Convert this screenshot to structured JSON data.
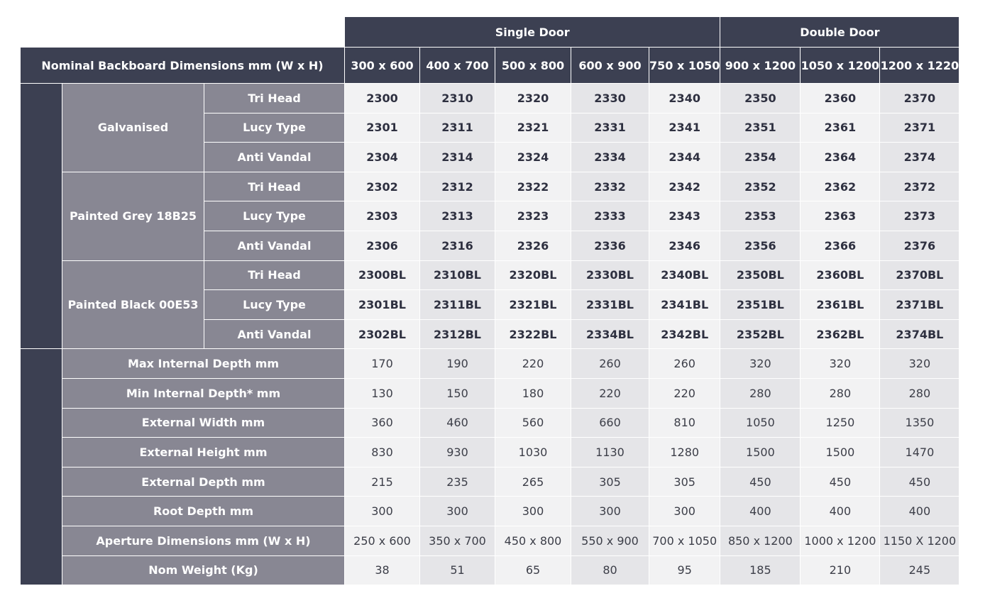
{
  "header": {
    "single_door": "Single Door",
    "double_door": "Double Door",
    "dimensions_label": "Nominal Backboard Dimensions mm (W x H)",
    "sizes": [
      "300 x 600",
      "400 x 700",
      "500 x 800",
      "600 x 900",
      "750 x 1050",
      "900 x 1200",
      "1050 x 1200",
      "1200 x 1220"
    ]
  },
  "finishes": [
    {
      "name": "Galvanised",
      "rows": [
        {
          "type": "Tri Head",
          "codes": [
            "2300",
            "2310",
            "2320",
            "2330",
            "2340",
            "2350",
            "2360",
            "2370"
          ]
        },
        {
          "type": "Lucy Type",
          "codes": [
            "2301",
            "2311",
            "2321",
            "2331",
            "2341",
            "2351",
            "2361",
            "2371"
          ]
        },
        {
          "type": "Anti Vandal",
          "codes": [
            "2304",
            "2314",
            "2324",
            "2334",
            "2344",
            "2354",
            "2364",
            "2374"
          ]
        }
      ]
    },
    {
      "name": "Painted Grey 18B25",
      "rows": [
        {
          "type": "Tri Head",
          "codes": [
            "2302",
            "2312",
            "2322",
            "2332",
            "2342",
            "2352",
            "2362",
            "2372"
          ]
        },
        {
          "type": "Lucy Type",
          "codes": [
            "2303",
            "2313",
            "2323",
            "2333",
            "2343",
            "2353",
            "2363",
            "2373"
          ]
        },
        {
          "type": "Anti Vandal",
          "codes": [
            "2306",
            "2316",
            "2326",
            "2336",
            "2346",
            "2356",
            "2366",
            "2376"
          ]
        }
      ]
    },
    {
      "name": "Painted Black 00E53",
      "rows": [
        {
          "type": "Tri Head",
          "codes": [
            "2300BL",
            "2310BL",
            "2320BL",
            "2330BL",
            "2340BL",
            "2350BL",
            "2360BL",
            "2370BL"
          ]
        },
        {
          "type": "Lucy Type",
          "codes": [
            "2301BL",
            "2311BL",
            "2321BL",
            "2331BL",
            "2341BL",
            "2351BL",
            "2361BL",
            "2371BL"
          ]
        },
        {
          "type": "Anti Vandal",
          "codes": [
            "2302BL",
            "2312BL",
            "2322BL",
            "2334BL",
            "2342BL",
            "2352BL",
            "2362BL",
            "2374BL"
          ]
        }
      ]
    }
  ],
  "specs": [
    {
      "label": "Max Internal Depth mm",
      "values": [
        "170",
        "190",
        "220",
        "260",
        "260",
        "320",
        "320",
        "320"
      ]
    },
    {
      "label": "Min Internal Depth* mm",
      "values": [
        "130",
        "150",
        "180",
        "220",
        "220",
        "280",
        "280",
        "280"
      ]
    },
    {
      "label": "External Width mm",
      "values": [
        "360",
        "460",
        "560",
        "660",
        "810",
        "1050",
        "1250",
        "1350"
      ]
    },
    {
      "label": "External Height mm",
      "values": [
        "830",
        "930",
        "1030",
        "1130",
        "1280",
        "1500",
        "1500",
        "1470"
      ]
    },
    {
      "label": "External Depth mm",
      "values": [
        "215",
        "235",
        "265",
        "305",
        "305",
        "450",
        "450",
        "450"
      ]
    },
    {
      "label": "Root Depth mm",
      "values": [
        "300",
        "300",
        "300",
        "300",
        "300",
        "400",
        "400",
        "400"
      ]
    },
    {
      "label": "Aperture Dimensions mm (W x H)",
      "values": [
        "250 x 600",
        "350 x 700",
        "450 x 800",
        "550 x 900",
        "700 x 1050",
        "850 x 1200",
        "1000 x 1200",
        "1150 X 1200"
      ]
    },
    {
      "label": "Nom Weight (Kg)",
      "values": [
        "38",
        "51",
        "65",
        "80",
        "95",
        "185",
        "210",
        "245"
      ]
    }
  ],
  "colors": {
    "dark_header": "#3c4052",
    "grey_label": "#888793",
    "cell_light": "#f2f2f3",
    "cell_mid": "#e5e5e8"
  }
}
